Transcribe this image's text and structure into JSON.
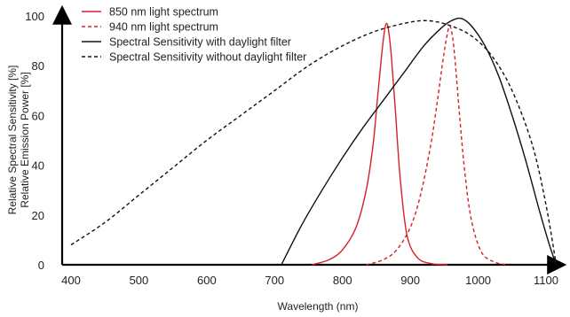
{
  "chart_data": {
    "type": "line",
    "xlabel": "Wavelength (nm)",
    "ylabel_line1": "Relative Spectral Sensitivity [%]",
    "ylabel_line2": "Relative Emission Power [%]",
    "xlim": [
      400,
      1120
    ],
    "ylim": [
      0,
      100
    ],
    "x_ticks": [
      "400",
      "500",
      "600",
      "700",
      "800",
      "900",
      "1000",
      "1100"
    ],
    "y_ticks": [
      "0",
      "20",
      "40",
      "60",
      "80",
      "100"
    ],
    "grid": false,
    "legend_position": "top-left",
    "series": [
      {
        "name": "850 nm light spectrum",
        "color": "#d62027",
        "dash": "solid",
        "x": [
          755,
          780,
          800,
          820,
          835,
          845,
          852,
          858,
          862,
          865,
          868,
          872,
          878,
          885,
          895,
          910,
          930,
          955
        ],
        "y": [
          0,
          2,
          6,
          15,
          30,
          48,
          68,
          85,
          94,
          97,
          94,
          84,
          62,
          35,
          12,
          3,
          0.5,
          0
        ]
      },
      {
        "name": "940 nm light spectrum",
        "color": "#d62027",
        "dash": "dashed",
        "x": [
          835,
          860,
          880,
          900,
          915,
          930,
          940,
          948,
          954,
          958,
          962,
          966,
          972,
          980,
          990,
          1005,
          1025,
          1045
        ],
        "y": [
          0,
          2,
          6,
          15,
          28,
          48,
          66,
          82,
          92,
          96,
          92,
          82,
          62,
          38,
          18,
          5,
          1,
          0
        ]
      },
      {
        "name": "Spectral Sensitivity with daylight filter",
        "color": "#111111",
        "dash": "solid",
        "x": [
          710,
          740,
          770,
          800,
          830,
          860,
          890,
          920,
          945,
          960,
          975,
          990,
          1010,
          1030,
          1050,
          1070,
          1090,
          1105,
          1115
        ],
        "y": [
          0,
          16,
          30,
          43,
          55,
          66,
          77,
          88,
          95,
          98,
          99,
          96,
          88,
          76,
          60,
          42,
          22,
          8,
          0
        ]
      },
      {
        "name": "Spectral Sensitivity without daylight filter",
        "color": "#111111",
        "dash": "dashed",
        "x": [
          400,
          450,
          500,
          550,
          600,
          650,
          700,
          750,
          800,
          850,
          900,
          930,
          960,
          990,
          1020,
          1050,
          1080,
          1100,
          1115
        ],
        "y": [
          8,
          17,
          28,
          39,
          50,
          60,
          70,
          80,
          88,
          94,
          97.5,
          98,
          96,
          92,
          84,
          70,
          48,
          24,
          0
        ]
      }
    ]
  }
}
